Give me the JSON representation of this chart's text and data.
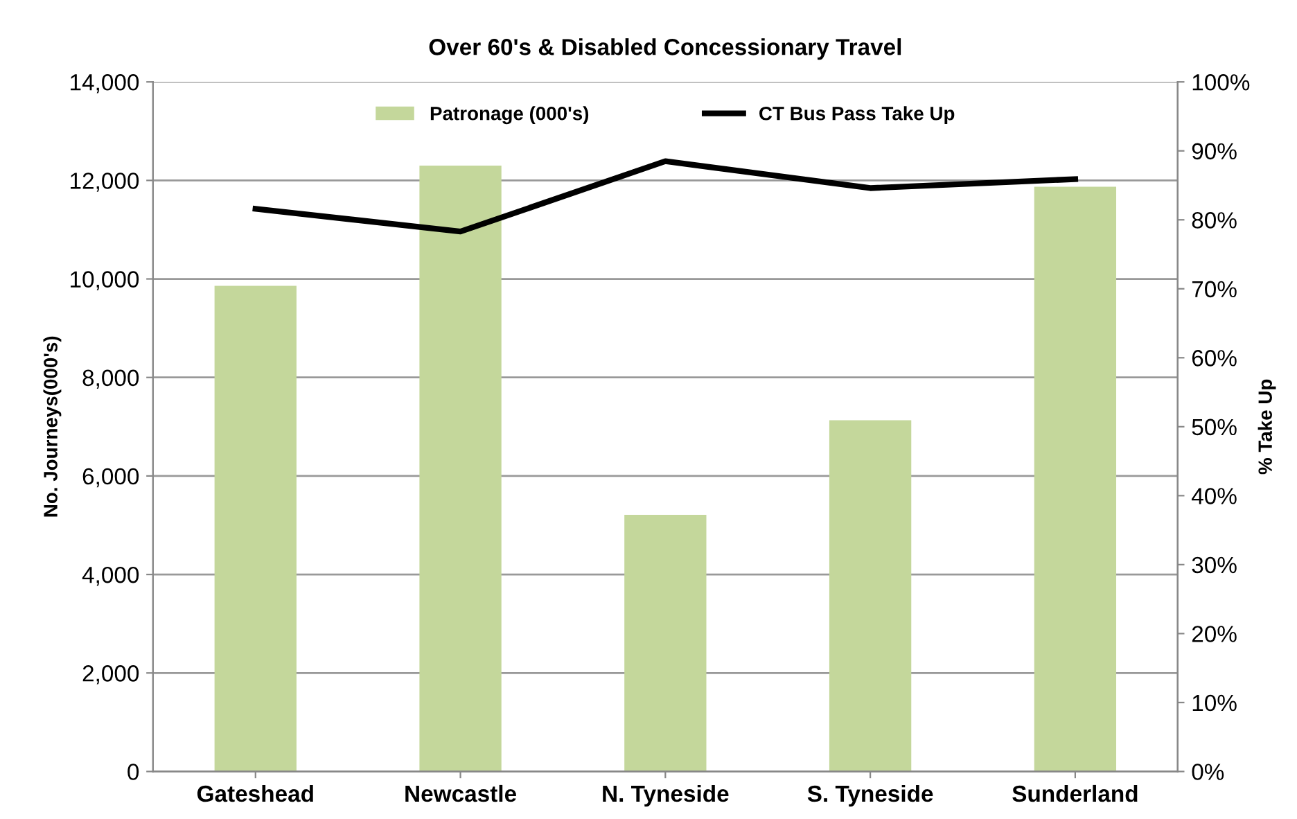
{
  "chart_data": {
    "type": "bar",
    "title": "Over 60's & Disabled Concessionary Travel",
    "ylabel": "No. Journeys(000's)",
    "y2label": "% Take Up",
    "categories": [
      "Gateshead",
      "Newcastle",
      "N. Tyneside",
      "S. Tyneside",
      "Sunderland"
    ],
    "series": [
      {
        "name": "Patronage (000's)",
        "color": "#c4d79b",
        "values": [
          9860,
          12300,
          5210,
          7130,
          11870
        ]
      },
      {
        "name": "CT Bus Pass Take Up",
        "type": "line",
        "axis": "y2",
        "color": "#000000",
        "values": [
          81.6,
          78.3,
          88.5,
          84.6,
          85.9
        ]
      }
    ],
    "ylim": [
      0,
      14000
    ],
    "yticks": [
      {
        "value": 0,
        "label": "0"
      },
      {
        "value": 2000,
        "label": "2,000"
      },
      {
        "value": 4000,
        "label": "4,000"
      },
      {
        "value": 6000,
        "label": "6,000"
      },
      {
        "value": 8000,
        "label": "8,000"
      },
      {
        "value": 10000,
        "label": "10,000"
      },
      {
        "value": 12000,
        "label": "12,000"
      },
      {
        "value": 14000,
        "label": "14,000"
      }
    ],
    "y2lim": [
      0,
      100
    ],
    "y2ticks": [
      {
        "value": 0,
        "label": "0%"
      },
      {
        "value": 10,
        "label": "10%"
      },
      {
        "value": 20,
        "label": "20%"
      },
      {
        "value": 30,
        "label": "30%"
      },
      {
        "value": 40,
        "label": "40%"
      },
      {
        "value": 50,
        "label": "50%"
      },
      {
        "value": 60,
        "label": "60%"
      },
      {
        "value": 70,
        "label": "70%"
      },
      {
        "value": 80,
        "label": "80%"
      },
      {
        "value": 90,
        "label": "90%"
      },
      {
        "value": 100,
        "label": "100%"
      }
    ],
    "grid": "y",
    "legend": "top",
    "marker": "none",
    "line_style": "solid"
  }
}
